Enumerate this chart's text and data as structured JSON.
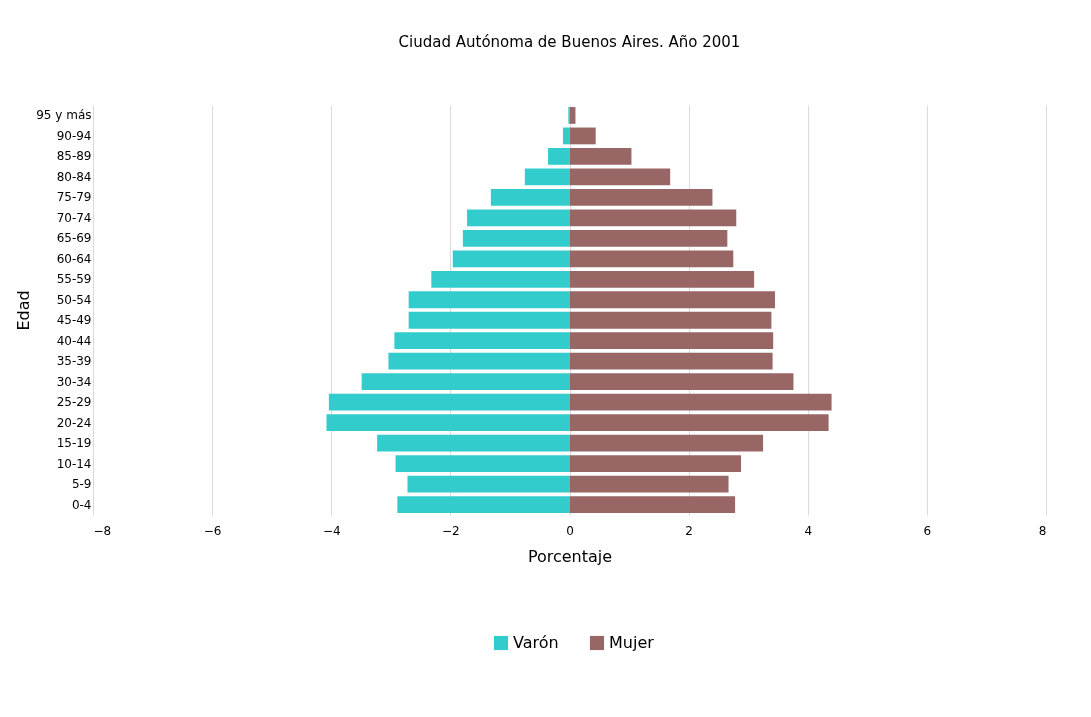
{
  "chart_data": {
    "type": "bar",
    "orientation": "horizontal",
    "title": "Ciudad Autónoma de Buenos Aires. Año 2001",
    "xlabel": "Porcentaje",
    "ylabel": "Edad",
    "categories": [
      "95 y más",
      "90-94",
      "85-89",
      "80-84",
      "75-79",
      "70-74",
      "65-69",
      "60-64",
      "55-59",
      "50-54",
      "45-49",
      "40-44",
      "35-39",
      "30-34",
      "25-29",
      "20-24",
      "15-19",
      "10-14",
      "5-9",
      "0-4"
    ],
    "series": [
      {
        "name": "Varón",
        "color": "#33cccc",
        "values": [
          -0.02,
          -0.11,
          -0.36,
          -0.75,
          -1.32,
          -1.72,
          -1.79,
          -1.96,
          -2.32,
          -2.7,
          -2.7,
          -2.94,
          -3.04,
          -3.49,
          -4.04,
          -4.08,
          -3.23,
          -2.92,
          -2.72,
          -2.89
        ]
      },
      {
        "name": "Mujer",
        "color": "#996666",
        "values": [
          0.1,
          0.44,
          1.04,
          1.69,
          2.4,
          2.8,
          2.65,
          2.75,
          3.1,
          3.45,
          3.39,
          3.42,
          3.41,
          3.76,
          4.4,
          4.35,
          3.25,
          2.88,
          2.67,
          2.78
        ]
      }
    ],
    "xlim": [
      -8,
      8
    ],
    "xticks": [
      -8,
      -6,
      -4,
      -2,
      0,
      2,
      4,
      6,
      8
    ],
    "grid": "x",
    "legend": "bottom",
    "stacked": true
  }
}
